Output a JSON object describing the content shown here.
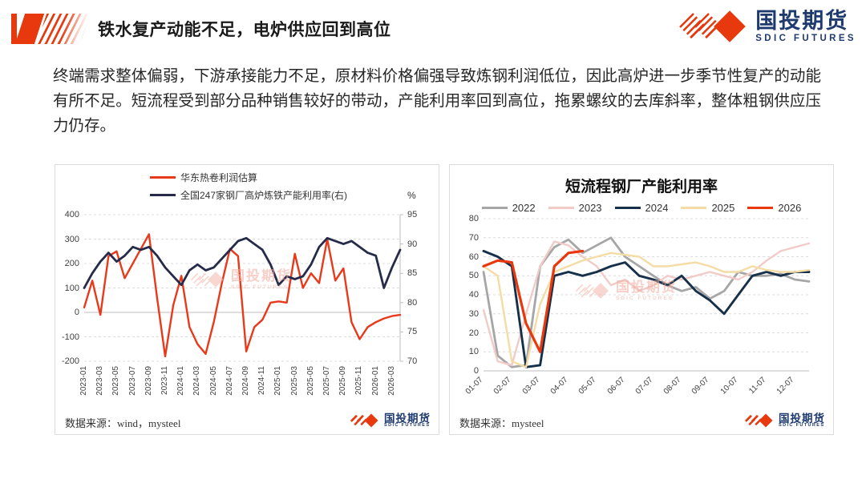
{
  "header": {
    "title": "铁水复产动能不足，电炉供应回到高位",
    "logo": {
      "name": "国投期货",
      "sub": "SDIC FUTURES"
    }
  },
  "body_text": "终端需求整体偏弱，下游承接能力不足，原材料价格偏强导致炼钢利润低位，因此高炉进一步季节性复产的动能有所不足。短流程受到部分品种销售较好的带动，产能利用率回到高位，拖累螺纹的去库斜率，整体粗钢供应压力仍存。",
  "colors": {
    "brand_red": "#e8380d",
    "brand_navy": "#1e3a6e"
  },
  "chart_data": [
    {
      "type": "line",
      "title": "",
      "legend_position": "top-left",
      "grid": "dashed-horizontal",
      "source": "数据来源：wind，mysteel",
      "x_labels": [
        "2023-01",
        "2023-03",
        "2023-05",
        "2023-07",
        "2023-09",
        "2023-11",
        "2024-01",
        "2024-03",
        "2024-05",
        "2024-07",
        "2024-09",
        "2024-11",
        "2025-01",
        "2025-03",
        "2025-05",
        "2025-07",
        "2025-09",
        "2025-11",
        "2026-01",
        "2026-03"
      ],
      "left_axis": {
        "min": -200,
        "max": 400,
        "ticks": [
          400,
          300,
          200,
          100,
          0,
          -100,
          -200
        ]
      },
      "right_axis": {
        "min": 70,
        "max": 95,
        "ticks": [
          95,
          90,
          85,
          80,
          75,
          70
        ],
        "unit": "%"
      },
      "series": [
        {
          "name": "华东热卷利润估算",
          "color": "#e8391b",
          "axis": "left",
          "width": 2.4,
          "values": [
            20,
            130,
            -10,
            230,
            250,
            140,
            200,
            260,
            320,
            60,
            -180,
            30,
            150,
            -60,
            -130,
            -170,
            -40,
            120,
            260,
            230,
            -160,
            -60,
            -30,
            40,
            45,
            40,
            240,
            100,
            160,
            120,
            300,
            130,
            180,
            -40,
            -110,
            -60,
            -40,
            -25,
            -15,
            -10
          ]
        },
        {
          "name": "全国247家钢厂高炉炼铁产能利用率(右)",
          "color": "#252b49",
          "axis": "right",
          "width": 2.8,
          "values": [
            82.5,
            85,
            87,
            88.5,
            87,
            88,
            89.5,
            89,
            89.5,
            88,
            86,
            84.5,
            83,
            85.5,
            86.5,
            85.5,
            86,
            87.5,
            89,
            90.5,
            91,
            90,
            89,
            86.5,
            83,
            84.5,
            84,
            84.5,
            86.5,
            89.5,
            91,
            90.5,
            90,
            90.5,
            89.5,
            88.5,
            88,
            82.5,
            86,
            89
          ]
        }
      ]
    },
    {
      "type": "line",
      "title": "短流程钢厂产能利用率",
      "legend_position": "top",
      "grid": "dashed-horizontal",
      "source": "数据来源：mysteel",
      "x_labels": [
        "01-07",
        "02-07",
        "03-07",
        "04-07",
        "05-07",
        "06-07",
        "07-07",
        "08-07",
        "09-07",
        "10-07",
        "11-07",
        "12-07"
      ],
      "left_axis": {
        "min": 0,
        "max": 80,
        "ticks": [
          80,
          70,
          60,
          50,
          40,
          30,
          20,
          10,
          0
        ]
      },
      "series": [
        {
          "name": "2022",
          "color": "#a6a6a6",
          "axis": "left",
          "width": 2.8,
          "values": [
            52,
            8,
            2,
            3,
            55,
            65,
            69,
            62,
            66,
            70,
            60,
            55,
            50,
            45,
            42,
            44,
            38,
            42,
            52,
            50,
            50,
            51,
            48,
            47
          ]
        },
        {
          "name": "2023",
          "color": "#f1cbc7",
          "axis": "left",
          "width": 2.4,
          "values": [
            32,
            5,
            3,
            30,
            55,
            68,
            66,
            60,
            55,
            45,
            48,
            42,
            45,
            50,
            48,
            50,
            52,
            50,
            48,
            52,
            58,
            63,
            65,
            67
          ]
        },
        {
          "name": "2024",
          "color": "#17304a",
          "axis": "left",
          "width": 2.9,
          "values": [
            63,
            60,
            55,
            2,
            3,
            50,
            52,
            50,
            52,
            55,
            57,
            50,
            48,
            45,
            50,
            42,
            37,
            30,
            40,
            50,
            52,
            50,
            52,
            52
          ]
        },
        {
          "name": "2025",
          "color": "#f4dca4",
          "axis": "left",
          "width": 2.4,
          "values": [
            55,
            50,
            5,
            2,
            35,
            52,
            55,
            58,
            60,
            62,
            61,
            60,
            55,
            55,
            56,
            57,
            55,
            52,
            52,
            55,
            53,
            52,
            52,
            53
          ]
        },
        {
          "name": "2026",
          "color": "#e8380d",
          "axis": "left",
          "width": 3.2,
          "values": [
            55,
            58,
            57,
            25,
            10,
            55,
            62,
            63,
            null,
            null,
            null,
            null,
            null,
            null,
            null,
            null,
            null,
            null,
            null,
            null,
            null,
            null,
            null,
            null
          ]
        }
      ]
    }
  ]
}
